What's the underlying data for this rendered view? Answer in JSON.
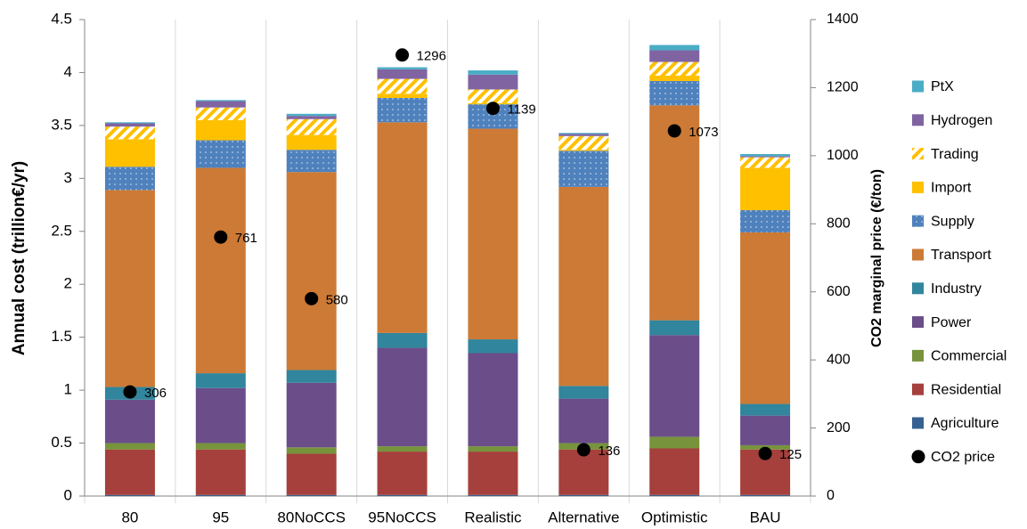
{
  "chart_data": {
    "type": "bar",
    "stacked": true,
    "y_label": "Annual cost (trillion€/yr)",
    "y2_label": "CO2 marginal price (€/ton)",
    "categories": [
      "80",
      "95",
      "80NoCCS",
      "95NoCCS",
      "Realistic",
      "Alternative",
      "Optimistic",
      "BAU"
    ],
    "ylim": [
      0,
      4.5
    ],
    "yticks": [
      0,
      0.5,
      1,
      1.5,
      2,
      2.5,
      3,
      3.5,
      4,
      4.5
    ],
    "y2lim": [
      0,
      1400
    ],
    "y2ticks": [
      0,
      200,
      400,
      600,
      800,
      1000,
      1200,
      1400
    ],
    "legend": "right",
    "series": [
      {
        "name": "Agriculture",
        "color": "#376092",
        "values": [
          0.01,
          0.01,
          0.01,
          0.01,
          0.01,
          0.01,
          0.01,
          0.01
        ]
      },
      {
        "name": "Residential",
        "color": "#a5403d",
        "values": [
          0.43,
          0.43,
          0.39,
          0.41,
          0.41,
          0.43,
          0.44,
          0.43
        ]
      },
      {
        "name": "Commercial",
        "color": "#77933c",
        "values": [
          0.06,
          0.06,
          0.06,
          0.05,
          0.05,
          0.06,
          0.11,
          0.04
        ]
      },
      {
        "name": "Power",
        "color": "#6b4d8a",
        "values": [
          0.41,
          0.52,
          0.61,
          0.93,
          0.88,
          0.42,
          0.96,
          0.28
        ]
      },
      {
        "name": "Industry",
        "color": "#31859c",
        "values": [
          0.12,
          0.14,
          0.12,
          0.14,
          0.13,
          0.12,
          0.14,
          0.11
        ]
      },
      {
        "name": "Transport",
        "color": "#cc7a36",
        "values": [
          1.86,
          1.94,
          1.87,
          1.99,
          1.99,
          1.88,
          2.03,
          1.62
        ]
      },
      {
        "name": "Supply",
        "color": "#4f81bd",
        "pattern": "dots",
        "values": [
          0.22,
          0.26,
          0.21,
          0.23,
          0.23,
          0.34,
          0.23,
          0.21
        ]
      },
      {
        "name": "Import",
        "color": "#ffc000",
        "values": [
          0.26,
          0.19,
          0.14,
          0.04,
          0.01,
          0.01,
          0.05,
          0.4
        ]
      },
      {
        "name": "Trading",
        "color": "#ffc000",
        "pattern": "hatch",
        "values": [
          0.12,
          0.12,
          0.15,
          0.14,
          0.13,
          0.13,
          0.13,
          0.1
        ]
      },
      {
        "name": "Hydrogen",
        "color": "#8064a2",
        "values": [
          0.03,
          0.06,
          0.03,
          0.09,
          0.14,
          0.02,
          0.11,
          0.01
        ]
      },
      {
        "name": "PtX",
        "color": "#4bacc6",
        "values": [
          0.01,
          0.01,
          0.02,
          0.02,
          0.04,
          0.01,
          0.05,
          0.02
        ]
      },
      {
        "name": "CO2 price",
        "type": "scatter",
        "axis": "y2",
        "color": "#000000",
        "values": [
          306,
          761,
          580,
          1296,
          1139,
          136,
          1073,
          125
        ]
      }
    ]
  }
}
